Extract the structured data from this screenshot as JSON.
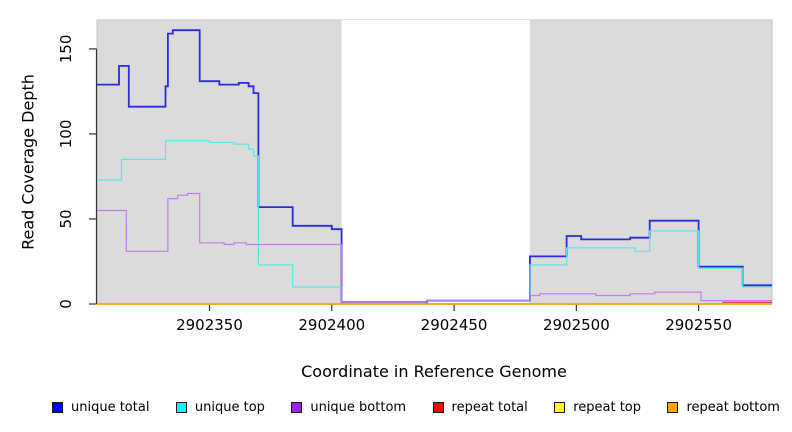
{
  "chart_data": {
    "type": "line",
    "subtype": "step-coverage-plot",
    "title": "",
    "xlabel": "Coordinate in Reference Genome",
    "ylabel": "Read Coverage Depth",
    "xlim": [
      2902304,
      2902580
    ],
    "ylim": [
      0,
      167
    ],
    "grid": false,
    "panel_bg": "#DBDBDB",
    "panel_border": "#C6C6C6",
    "axis_color": "#333333",
    "gap_region": {
      "from": 2902404,
      "to": 2902481,
      "color": "#FFFFFF"
    },
    "xticks": [
      "2902350",
      "2902400",
      "2902450",
      "2902500",
      "2902550"
    ],
    "xtick_values": [
      2902350,
      2902400,
      2902450,
      2902500,
      2902550
    ],
    "yticks": [
      "0",
      "50",
      "100",
      "150"
    ],
    "ytick_values": [
      0,
      50,
      100,
      150
    ],
    "series": [
      {
        "id": "unique-total",
        "name": "unique total",
        "color": "#2A2ADF",
        "width": 1.8,
        "points": [
          [
            2902304,
            129
          ],
          [
            2902313,
            140
          ],
          [
            2902317,
            116
          ],
          [
            2902332,
            128
          ],
          [
            2902333,
            159
          ],
          [
            2902335,
            161
          ],
          [
            2902346,
            131
          ],
          [
            2902354,
            129
          ],
          [
            2902362,
            130
          ],
          [
            2902366,
            128
          ],
          [
            2902368,
            124
          ],
          [
            2902370,
            57
          ],
          [
            2902384,
            46
          ],
          [
            2902400,
            44
          ],
          [
            2902404,
            1
          ],
          [
            2902439,
            2
          ],
          [
            2902481,
            28
          ],
          [
            2902496,
            40
          ],
          [
            2902502,
            38
          ],
          [
            2902522,
            39
          ],
          [
            2902530,
            49
          ],
          [
            2902550,
            22
          ],
          [
            2902568,
            11
          ]
        ]
      },
      {
        "id": "unique-top",
        "name": "unique top",
        "color": "#5CE6E6",
        "width": 1.2,
        "points": [
          [
            2902304,
            73
          ],
          [
            2902314,
            85
          ],
          [
            2902332,
            96
          ],
          [
            2902350,
            95
          ],
          [
            2902360,
            94
          ],
          [
            2902366,
            91
          ],
          [
            2902368,
            87
          ],
          [
            2902370,
            23
          ],
          [
            2902384,
            10
          ],
          [
            2902404,
            0
          ],
          [
            2902481,
            23
          ],
          [
            2902496,
            33
          ],
          [
            2902524,
            31
          ],
          [
            2902530,
            43
          ],
          [
            2902550,
            21
          ],
          [
            2902568,
            10
          ]
        ]
      },
      {
        "id": "unique-bottom",
        "name": "unique bottom",
        "color": "#C07BE8",
        "width": 1.2,
        "points": [
          [
            2902304,
            55
          ],
          [
            2902316,
            31
          ],
          [
            2902333,
            62
          ],
          [
            2902337,
            64
          ],
          [
            2902341,
            65
          ],
          [
            2902346,
            36
          ],
          [
            2902356,
            35
          ],
          [
            2902360,
            36
          ],
          [
            2902365,
            35
          ],
          [
            2902404,
            1
          ],
          [
            2902439,
            2
          ],
          [
            2902481,
            5
          ],
          [
            2902485,
            6
          ],
          [
            2902508,
            5
          ],
          [
            2902522,
            6
          ],
          [
            2902532,
            7
          ],
          [
            2902551,
            2
          ]
        ]
      },
      {
        "id": "repeat-total",
        "name": "repeat total",
        "color": "#E03030",
        "width": 1.2,
        "points": [
          [
            2902304,
            0
          ],
          [
            2902560,
            1
          ]
        ]
      },
      {
        "id": "repeat-top",
        "name": "repeat top",
        "color": "#FFFF00",
        "width": 1.0,
        "points": [
          [
            2902304,
            0
          ]
        ]
      },
      {
        "id": "repeat-bottom",
        "name": "repeat bottom",
        "color": "#FFA11E",
        "width": 1.8,
        "points": [
          [
            2902304,
            0
          ]
        ]
      }
    ],
    "legend": [
      {
        "label": "unique total",
        "color": "#0000FF"
      },
      {
        "label": "unique top",
        "color": "#00FFFF"
      },
      {
        "label": "unique bottom",
        "color": "#A020F0"
      },
      {
        "label": "repeat total",
        "color": "#FF0000"
      },
      {
        "label": "repeat top",
        "color": "#FFFF00"
      },
      {
        "label": "repeat bottom",
        "color": "#FFA500"
      }
    ],
    "legend_position": "bottom"
  }
}
